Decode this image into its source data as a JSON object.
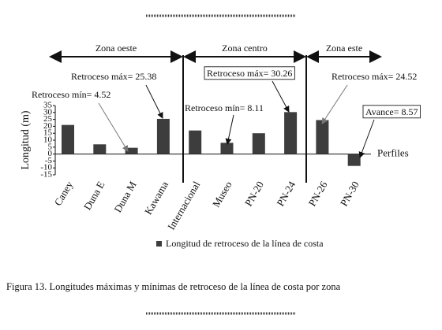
{
  "chart_data": {
    "type": "bar",
    "zones": [
      "Zona oeste",
      "Zona centro",
      "Zona este"
    ],
    "categories": [
      "Caney",
      "Duna E",
      "Duna M",
      "Kawama",
      "Internacional",
      "Museo",
      "PN-20",
      "PN-24",
      "PN-26",
      "PN-30"
    ],
    "series": [
      {
        "name": "Longitud de retroceso de la línea de costa",
        "color": "#3d3d3d",
        "values": [
          21,
          7,
          4.52,
          25.38,
          17,
          8.11,
          15,
          30.26,
          24.52,
          -8.57
        ]
      }
    ],
    "y_label": "Longitud  (m)",
    "x_label": "Perfiles",
    "ylim": [
      -15,
      35
    ],
    "yticks": [
      35,
      30,
      25,
      20,
      15,
      10,
      5,
      0,
      -5,
      -10,
      -15
    ],
    "annotations": [
      "Retroceso máx= 25.38",
      "Retroceso mín= 4.52",
      "Retroceso máx= 30.26",
      "Retroceso mín= 8.11",
      "Retroceso máx= 24.52",
      "Avance= 8.57"
    ],
    "caption": "Figura 13. Longitudes máximas y mínimas de retroceso de la línea de costa por zona"
  }
}
